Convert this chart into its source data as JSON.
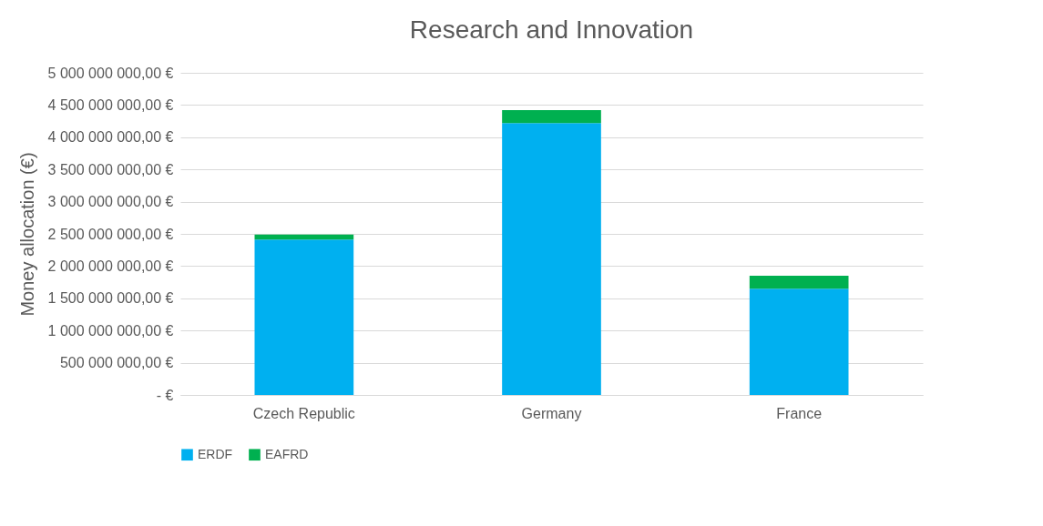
{
  "chart_data": {
    "type": "bar",
    "title": "Research and Innovation",
    "ylabel": "Money allocation (€)",
    "categories": [
      "Czech Republic",
      "Germany",
      "France"
    ],
    "series": [
      {
        "name": "ERDF",
        "color": "#00b0f0",
        "values": [
          2410000000,
          4220000000,
          1650000000
        ]
      },
      {
        "name": "EAFRD",
        "color": "#00b050",
        "values": [
          80000000,
          200000000,
          200000000
        ]
      }
    ],
    "stacked": true,
    "ylim": [
      0,
      5000000000
    ],
    "yticks": [
      {
        "value": 0,
        "label": "-  €"
      },
      {
        "value": 500000000,
        "label": "500 000 000,00 €"
      },
      {
        "value": 1000000000,
        "label": "1 000 000 000,00 €"
      },
      {
        "value": 1500000000,
        "label": "1 500 000 000,00 €"
      },
      {
        "value": 2000000000,
        "label": "2 000 000 000,00 €"
      },
      {
        "value": 2500000000,
        "label": "2 500 000 000,00 €"
      },
      {
        "value": 3000000000,
        "label": "3 000 000 000,00 €"
      },
      {
        "value": 3500000000,
        "label": "3 500 000 000,00 €"
      },
      {
        "value": 4000000000,
        "label": "4 000 000 000,00 €"
      },
      {
        "value": 4500000000,
        "label": "4 500 000 000,00 €"
      },
      {
        "value": 5000000000,
        "label": "5 000 000 000,00 €"
      }
    ],
    "grid": "y",
    "legend": "bottom"
  }
}
